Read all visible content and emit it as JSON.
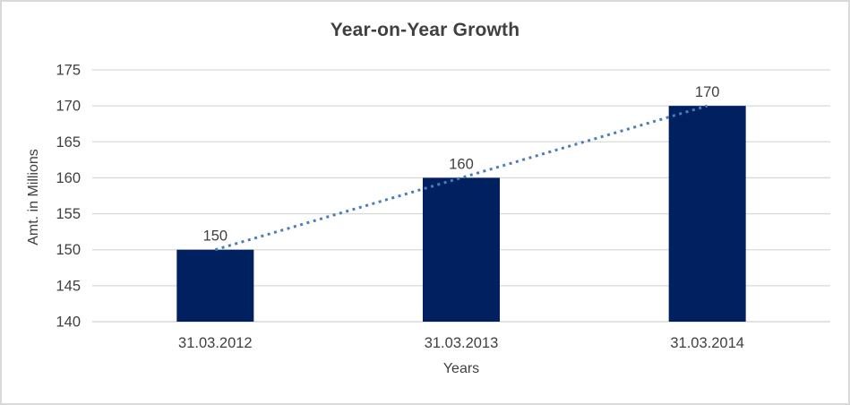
{
  "chart_data": {
    "type": "bar",
    "title": "Year-on-Year Growth",
    "categories": [
      "31.03.2012",
      "31.03.2013",
      "31.03.2014"
    ],
    "values": [
      150,
      160,
      170
    ],
    "data_labels": [
      "150",
      "160",
      "170"
    ],
    "xlabel": "Years",
    "ylabel": "Amt. in Millions",
    "ylim": [
      140,
      175
    ],
    "yticks": [
      140,
      145,
      150,
      155,
      160,
      165,
      170,
      175
    ],
    "grid": true,
    "legend": "none",
    "bar_color": "#002060",
    "gridline_color": "#d9d9d9",
    "axis_line_color": "#d0d0d0",
    "text_color": "#404040",
    "trendline": {
      "type": "linear",
      "style": "dotted",
      "color": "#4a7ebb"
    }
  }
}
